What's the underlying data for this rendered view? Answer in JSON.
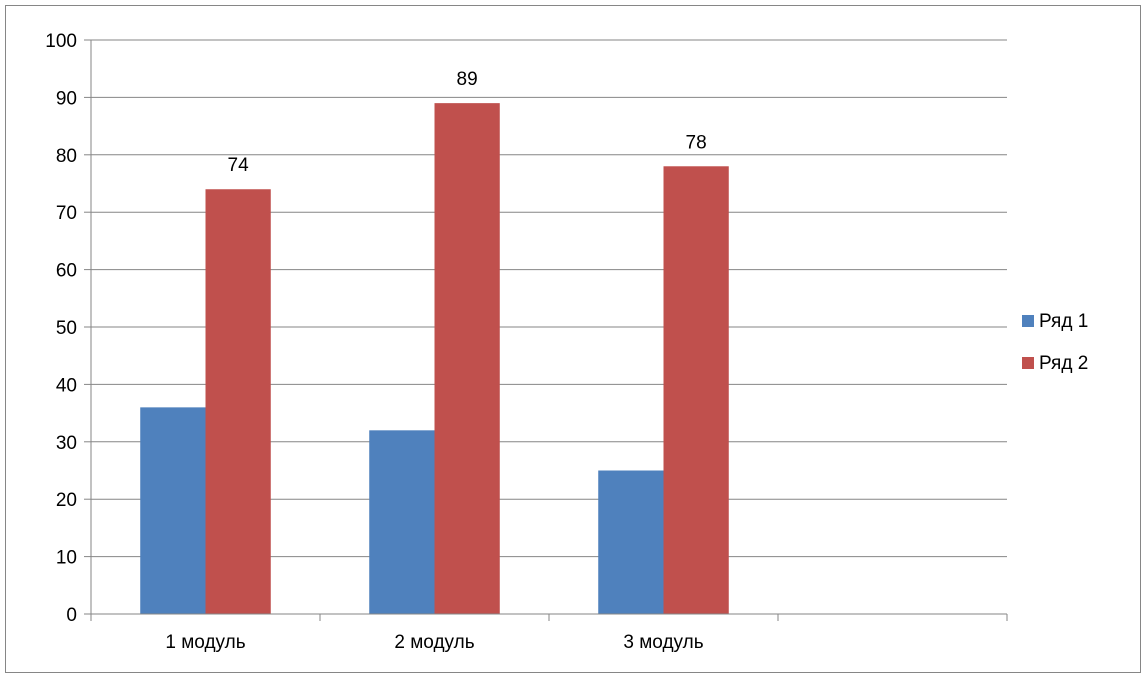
{
  "chart_data": {
    "type": "bar",
    "categories": [
      "1 модуль",
      "2 модуль",
      "3 модуль",
      ""
    ],
    "series": [
      {
        "name": "Ряд 1",
        "values": [
          36,
          32,
          25,
          null
        ],
        "color": "#4F81BD",
        "data_labels": false
      },
      {
        "name": "Ряд 2",
        "values": [
          74,
          89,
          78,
          null
        ],
        "color": "#C0504D",
        "data_labels": true
      }
    ],
    "ylim": [
      0,
      100
    ],
    "yticks": [
      0,
      10,
      20,
      30,
      40,
      50,
      60,
      70,
      80,
      90,
      100
    ],
    "grid": true,
    "legend_position": "right",
    "gridline_color": "#868686",
    "axis_color": "#868686"
  }
}
